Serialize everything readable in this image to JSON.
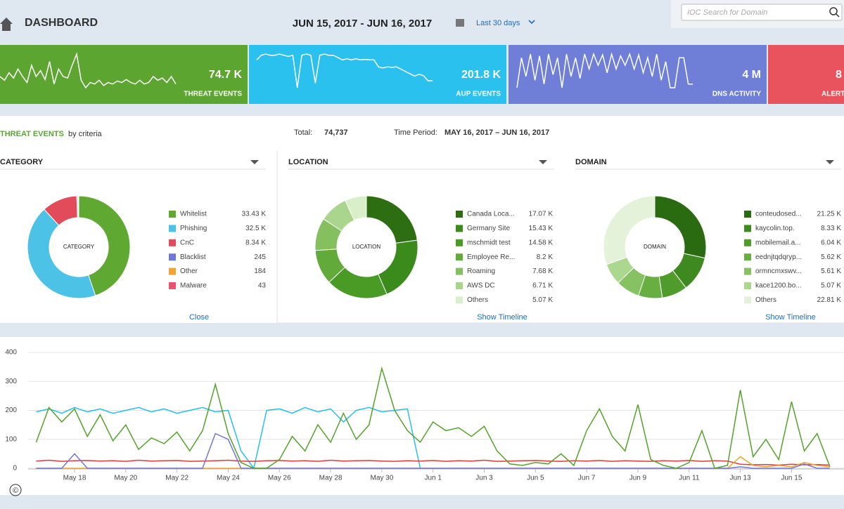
{
  "header": {
    "title": "DASHBOARD",
    "date_range": "JUN 15, 2017 - JUN 16, 2017",
    "period": "Last 30 days",
    "search_placeholder": "IOC Search for Domain"
  },
  "tiles": [
    {
      "value": "74.7 K",
      "label": "THREAT EVENTS",
      "color": "#5ca531",
      "values": [
        100,
        95,
        105,
        98,
        110,
        100,
        92,
        115,
        100,
        108,
        96,
        120,
        90,
        110,
        100,
        98,
        115,
        130,
        95,
        85,
        92,
        90,
        95,
        88,
        92,
        90,
        94,
        92,
        96,
        92,
        90,
        95,
        90,
        92,
        100,
        95,
        98,
        92,
        100,
        90
      ]
    },
    {
      "value": "201.8 K",
      "label": "AUP EVENTS",
      "color": "#2ac1ee",
      "values": [
        180,
        200,
        205,
        200,
        200,
        205,
        200,
        195,
        200,
        60,
        200,
        205,
        200,
        80,
        200,
        205,
        200,
        200,
        190,
        180,
        185,
        180,
        185,
        180,
        182,
        180,
        180,
        150,
        145,
        150,
        148,
        150,
        140,
        130,
        120,
        110,
        118,
        112,
        90,
        90
      ]
    },
    {
      "value": "4 M",
      "label": "DNS ACTIVITY",
      "color": "#6f7fd8",
      "values": [
        60,
        140,
        90,
        150,
        80,
        145,
        70,
        150,
        95,
        140,
        60,
        150,
        90,
        140,
        85,
        150,
        110,
        150,
        120,
        148,
        100,
        150,
        110,
        145,
        120,
        150,
        110,
        148,
        100,
        140,
        90,
        150,
        80,
        130,
        60,
        60,
        140,
        140,
        70,
        70
      ]
    },
    {
      "value": "8",
      "label": "ALERT",
      "color": "#e8535e"
    }
  ],
  "summary": {
    "title": "THREAT EVENTS",
    "subtitle": "by criteria",
    "total_label": "Total:",
    "total": "74,737",
    "period_label": "Time Period:",
    "period": "MAY 16, 2017 – JUN 16, 2017"
  },
  "badge": "©",
  "chart_data": [
    {
      "type": "donut",
      "title": "CATEGORY",
      "center_label": "CATEGORY",
      "link": "Close",
      "categories": [
        "Whitelist",
        "Phishing",
        "CnC",
        "Blacklist",
        "Other",
        "Malware"
      ],
      "values": [
        33430,
        32500,
        8340,
        245,
        184,
        43
      ],
      "value_labels": [
        "33.43 K",
        "32.5 K",
        "8.34 K",
        "245",
        "184",
        "43"
      ],
      "colors": [
        "#5fa832",
        "#4cc3e6",
        "#e24c5a",
        "#6f78d6",
        "#f3a233",
        "#e8546c"
      ]
    },
    {
      "type": "donut",
      "title": "LOCATION",
      "center_label": "LOCATION",
      "link": "Show Timeline",
      "categories": [
        "Canada Loca...",
        "Germany Site",
        "mschmidt test",
        "Employee Re...",
        "Roaming",
        "AWS DC",
        "Others"
      ],
      "values": [
        17070,
        15430,
        14580,
        8200,
        7680,
        6710,
        5070
      ],
      "value_labels": [
        "17.07 K",
        "15.43 K",
        "14.58 K",
        "8.2 K",
        "7.68 K",
        "6.71 K",
        "5.07 K"
      ],
      "colors": [
        "#2d6e12",
        "#3a8a1c",
        "#4a9a26",
        "#62ab3a",
        "#84c05d",
        "#a9d58c",
        "#d9efc9"
      ]
    },
    {
      "type": "donut",
      "title": "DOMAIN",
      "center_label": "DOMAIN",
      "link": "Show Timeline",
      "categories": [
        "conteudosed...",
        "kaycolin.top.",
        "mobilemail.a...",
        "eednjtqdqryp...",
        "ormncmxswv...",
        "kace1200.bo...",
        "Others"
      ],
      "values": [
        21250,
        8330,
        6040,
        5620,
        5610,
        5070,
        22810
      ],
      "value_labels": [
        "21.25 K",
        "8.33 K",
        "6.04 K",
        "5.62 K",
        "5.61 K",
        "5.07 K",
        "22.81 K"
      ],
      "colors": [
        "#2a6a10",
        "#3f8a20",
        "#4f9b2c",
        "#67af40",
        "#86c162",
        "#acd78f",
        "#e3f2d8"
      ]
    },
    {
      "type": "line",
      "ylim": [
        0,
        400
      ],
      "yticks": [
        0,
        100,
        200,
        300,
        400
      ],
      "grid": true,
      "categories": [
        null,
        null,
        null,
        "May 18",
        null,
        null,
        null,
        "May 20",
        null,
        null,
        null,
        "May 22",
        null,
        null,
        null,
        "May 24",
        null,
        null,
        null,
        "May 26",
        null,
        null,
        null,
        "May 28",
        null,
        null,
        null,
        "May 30",
        null,
        null,
        null,
        "Jun 1",
        null,
        null,
        null,
        "Jun 3",
        null,
        null,
        null,
        "Jun 5",
        null,
        null,
        null,
        "Jun 7",
        null,
        null,
        null,
        "Jun 9",
        null,
        null,
        null,
        "Jun 11",
        null,
        null,
        null,
        "Jun 13",
        null,
        null,
        null,
        "Jun 15",
        null,
        null,
        null
      ],
      "series": [
        {
          "color": "#25bfe8",
          "values": [
            195,
            205,
            190,
            210,
            195,
            205,
            190,
            200,
            210,
            195,
            205,
            190,
            200,
            210,
            195,
            200,
            60,
            0,
            200,
            205,
            190,
            210,
            195,
            205,
            160,
            200,
            210,
            195,
            200,
            205,
            0,
            null,
            null,
            null,
            null,
            null,
            null,
            null,
            null,
            null,
            null,
            null,
            null,
            null,
            null,
            null,
            null,
            null,
            null,
            null,
            null,
            null,
            null,
            null,
            null,
            null,
            null,
            null,
            null,
            null,
            null,
            null,
            null
          ]
        },
        {
          "color": "#e03a3a",
          "values": [
            25,
            28,
            24,
            26,
            27,
            25,
            26,
            24,
            28,
            25,
            26,
            27,
            24,
            25,
            26,
            28,
            25,
            24,
            26,
            27,
            25,
            26,
            24,
            28,
            25,
            26,
            27,
            25,
            24,
            26,
            25,
            27,
            24,
            26,
            25,
            28,
            24,
            25,
            26,
            27,
            25,
            24,
            26,
            25,
            27,
            24,
            26,
            25,
            24,
            26,
            25,
            27,
            24,
            26,
            25,
            14,
            12,
            13,
            11,
            14,
            12,
            13,
            11
          ]
        },
        {
          "color": "#f3a233",
          "values": [
            0,
            0,
            0,
            0,
            0,
            0,
            0,
            0,
            0,
            0,
            0,
            0,
            0,
            0,
            0,
            0,
            0,
            0,
            0,
            0,
            0,
            0,
            0,
            0,
            0,
            0,
            0,
            0,
            0,
            0,
            0,
            0,
            0,
            0,
            0,
            0,
            0,
            0,
            0,
            0,
            0,
            0,
            0,
            0,
            0,
            0,
            0,
            0,
            0,
            0,
            0,
            0,
            0,
            0,
            0,
            40,
            10,
            5,
            10,
            5,
            20,
            10,
            5
          ]
        },
        {
          "color": "#6f78d6",
          "values": [
            0,
            0,
            0,
            50,
            0,
            0,
            0,
            0,
            0,
            0,
            0,
            0,
            0,
            0,
            120,
            100,
            0,
            0,
            0,
            0,
            0,
            0,
            0,
            0,
            0,
            0,
            0,
            0,
            0,
            0,
            0,
            0,
            0,
            0,
            0,
            0,
            0,
            0,
            0,
            0,
            0,
            0,
            0,
            0,
            0,
            0,
            0,
            0,
            0,
            0,
            0,
            0,
            0,
            0,
            0,
            5,
            0,
            0,
            0,
            0,
            15,
            0,
            0
          ]
        },
        {
          "color": "#55a22a",
          "values": [
            90,
            210,
            160,
            205,
            110,
            185,
            95,
            150,
            65,
            105,
            85,
            125,
            60,
            130,
            290,
            120,
            20,
            0,
            0,
            30,
            110,
            60,
            150,
            90,
            190,
            100,
            150,
            345,
            200,
            130,
            90,
            160,
            130,
            140,
            110,
            145,
            60,
            15,
            10,
            20,
            15,
            50,
            10,
            130,
            205,
            110,
            60,
            220,
            30,
            10,
            0,
            20,
            130,
            0,
            10,
            270,
            40,
            100,
            30,
            230,
            60,
            120,
            5
          ]
        }
      ]
    }
  ]
}
